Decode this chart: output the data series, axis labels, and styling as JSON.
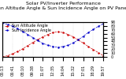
{
  "title": "Solar PV/Inverter Performance\nSun Altitude Angle & Sun Incidence Angle on PV Panels",
  "x_times": [
    "05:13",
    "05:57",
    "06:41",
    "07:26",
    "08:10",
    "08:54",
    "09:38",
    "10:22",
    "11:07",
    "11:51",
    "12:35",
    "13:19",
    "14:04",
    "14:48",
    "15:32",
    "16:16",
    "17:01",
    "17:45",
    "18:29",
    "19:13",
    "19:57"
  ],
  "x_numeric": [
    0,
    1,
    2,
    3,
    4,
    5,
    6,
    7,
    8,
    9,
    10,
    11,
    12,
    13,
    14,
    15,
    16,
    17,
    18,
    19,
    20
  ],
  "sun_altitude": [
    0,
    3,
    8,
    14,
    21,
    29,
    37,
    45,
    52,
    58,
    63,
    65,
    63,
    58,
    52,
    44,
    36,
    27,
    19,
    11,
    3
  ],
  "sun_incidence": [
    88,
    84,
    79,
    73,
    66,
    58,
    50,
    42,
    35,
    30,
    27,
    25,
    27,
    30,
    36,
    44,
    53,
    63,
    71,
    79,
    86
  ],
  "altitude_color": "#cc0000",
  "incidence_color": "#0000cc",
  "bg_color": "#ffffff",
  "grid_color": "#bbbbbb",
  "ylim": [
    0,
    90
  ],
  "yticks": [
    0,
    10,
    20,
    30,
    40,
    50,
    60,
    70,
    80,
    90
  ],
  "ytick_labels": [
    "0",
    "10",
    "20",
    "30",
    "40",
    "50",
    "60",
    "70",
    "80",
    "90"
  ],
  "legend_altitude": "Sun Altitude Angle",
  "legend_incidence": "Sun Incidence Angle",
  "title_fontsize": 4.5,
  "tick_fontsize": 3.5,
  "legend_fontsize": 3.5,
  "marker_size": 1.5,
  "linewidth": 0.5
}
